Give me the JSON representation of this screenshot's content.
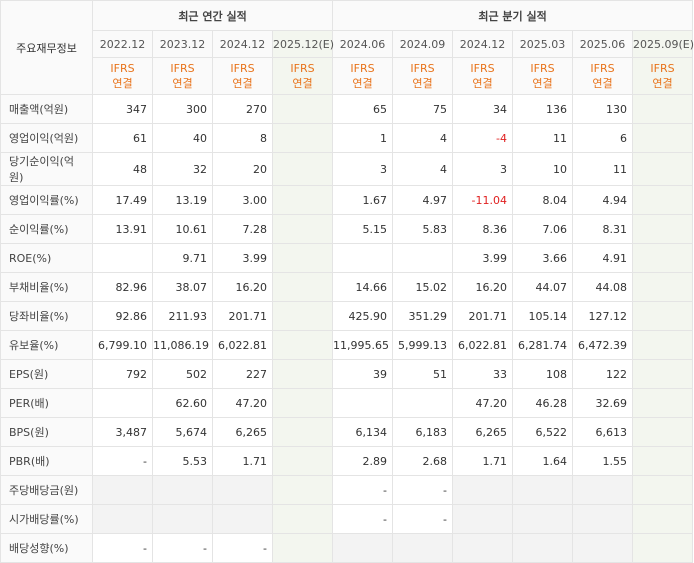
{
  "header": {
    "label": "주요재무정보",
    "groups": [
      {
        "title": "최근 연간 실적",
        "span": 4
      },
      {
        "title": "최근 분기 실적",
        "span": 6
      }
    ],
    "columns": [
      {
        "period": "2022.12",
        "standard": "IFRS",
        "basis": "연결"
      },
      {
        "period": "2023.12",
        "standard": "IFRS",
        "basis": "연결"
      },
      {
        "period": "2024.12",
        "standard": "IFRS",
        "basis": "연결"
      },
      {
        "period": "2025.12(E)",
        "standard": "IFRS",
        "basis": "연결"
      },
      {
        "period": "2024.06",
        "standard": "IFRS",
        "basis": "연결"
      },
      {
        "period": "2024.09",
        "standard": "IFRS",
        "basis": "연결"
      },
      {
        "period": "2024.12",
        "standard": "IFRS",
        "basis": "연결"
      },
      {
        "period": "2025.03",
        "standard": "IFRS",
        "basis": "연결"
      },
      {
        "period": "2025.06",
        "standard": "IFRS",
        "basis": "연결"
      },
      {
        "period": "2025.09(E)",
        "standard": "IFRS",
        "basis": "연결"
      }
    ]
  },
  "table": {
    "rows": [
      {
        "label": "매출액(억원)",
        "values": [
          "347",
          "300",
          "270",
          null,
          "65",
          "75",
          "34",
          "136",
          "130",
          null
        ]
      },
      {
        "label": "영업이익(억원)",
        "values": [
          "61",
          "40",
          "8",
          null,
          "1",
          "4",
          "-4",
          "11",
          "6",
          null
        ]
      },
      {
        "label": "당기순이익(억원)",
        "values": [
          "48",
          "32",
          "20",
          null,
          "3",
          "4",
          "3",
          "10",
          "11",
          null
        ]
      },
      {
        "label": "영업이익률(%)",
        "values": [
          "17.49",
          "13.19",
          "3.00",
          null,
          "1.67",
          "4.97",
          "-11.04",
          "8.04",
          "4.94",
          null
        ]
      },
      {
        "label": "순이익률(%)",
        "values": [
          "13.91",
          "10.61",
          "7.28",
          null,
          "5.15",
          "5.83",
          "8.36",
          "7.06",
          "8.31",
          null
        ]
      },
      {
        "label": "ROE(%)",
        "values": [
          null,
          "9.71",
          "3.99",
          null,
          null,
          null,
          "3.99",
          "3.66",
          "4.91",
          null
        ]
      },
      {
        "label": "부채비율(%)",
        "values": [
          "82.96",
          "38.07",
          "16.20",
          null,
          "14.66",
          "15.02",
          "16.20",
          "44.07",
          "44.08",
          null
        ]
      },
      {
        "label": "당좌비율(%)",
        "values": [
          "92.86",
          "211.93",
          "201.71",
          null,
          "425.90",
          "351.29",
          "201.71",
          "105.14",
          "127.12",
          null
        ]
      },
      {
        "label": "유보율(%)",
        "values": [
          "6,799.10",
          "11,086.19",
          "6,022.81",
          null,
          "11,995.65",
          "5,999.13",
          "6,022.81",
          "6,281.74",
          "6,472.39",
          null
        ]
      },
      {
        "label": "EPS(원)",
        "values": [
          "792",
          "502",
          "227",
          null,
          "39",
          "51",
          "33",
          "108",
          "122",
          null
        ]
      },
      {
        "label": "PER(배)",
        "values": [
          null,
          "62.60",
          "47.20",
          null,
          null,
          null,
          "47.20",
          "46.28",
          "32.69",
          null
        ]
      },
      {
        "label": "BPS(원)",
        "values": [
          "3,487",
          "5,674",
          "6,265",
          null,
          "6,134",
          "6,183",
          "6,265",
          "6,522",
          "6,613",
          null
        ]
      },
      {
        "label": "PBR(배)",
        "values": [
          "-",
          "5.53",
          "1.71",
          null,
          "2.89",
          "2.68",
          "1.71",
          "1.64",
          "1.55",
          null
        ]
      },
      {
        "label": "주당배당금(원)",
        "values": [
          null,
          null,
          null,
          null,
          "-",
          "-",
          null,
          null,
          null,
          null
        ]
      },
      {
        "label": "시가배당률(%)",
        "values": [
          null,
          null,
          null,
          null,
          "-",
          "-",
          null,
          null,
          null,
          null
        ]
      },
      {
        "label": "배당성향(%)",
        "values": [
          "-",
          "-",
          "-",
          null,
          null,
          null,
          null,
          null,
          null,
          null
        ]
      }
    ]
  }
}
